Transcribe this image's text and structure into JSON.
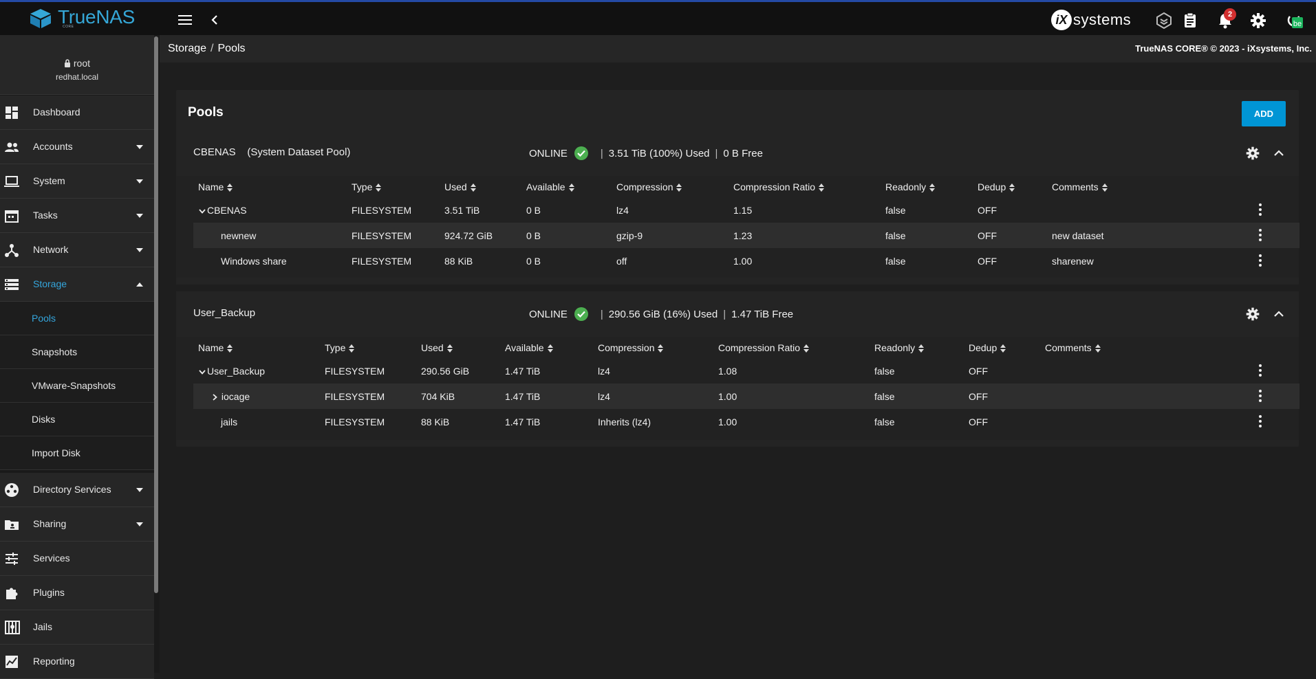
{
  "app": {
    "brand": "TrueNAS",
    "brand_sub": "CORE",
    "vendor_mark": "iX",
    "vendor": "systems",
    "notification_count": "2",
    "accent": "#0095d5",
    "online_color": "#4caf50"
  },
  "user": {
    "name": "root",
    "host": "redhat.local"
  },
  "sidebar": {
    "items": [
      {
        "label": "Dashboard",
        "icon": "dashboard-icon"
      },
      {
        "label": "Accounts",
        "icon": "people-icon"
      },
      {
        "label": "System",
        "icon": "laptop-icon"
      },
      {
        "label": "Tasks",
        "icon": "calendar-icon"
      },
      {
        "label": "Network",
        "icon": "network-icon"
      },
      {
        "label": "Storage",
        "icon": "storage-icon"
      },
      {
        "label": "Directory Services",
        "icon": "directory-icon"
      },
      {
        "label": "Sharing",
        "icon": "sharing-icon"
      },
      {
        "label": "Services",
        "icon": "tune-icon"
      },
      {
        "label": "Plugins",
        "icon": "extension-icon"
      },
      {
        "label": "Jails",
        "icon": "jail-icon"
      },
      {
        "label": "Reporting",
        "icon": "chart-icon"
      }
    ],
    "storage_sub": [
      "Pools",
      "Snapshots",
      "VMware-Snapshots",
      "Disks",
      "Import Disk"
    ]
  },
  "breadcrumb": {
    "parent": "Storage",
    "sep": "/",
    "current": "Pools"
  },
  "copyright": "TrueNAS CORE® © 2023 - iXsystems, Inc.",
  "page": {
    "title": "Pools",
    "add_label": "ADD"
  },
  "columns": [
    "Name",
    "Type",
    "Used",
    "Available",
    "Compression",
    "Compression Ratio",
    "Readonly",
    "Dedup",
    "Comments"
  ],
  "pools": [
    {
      "name": "CBENAS",
      "tag": "(System Dataset Pool)",
      "status": "ONLINE",
      "used": "3.51 TiB (100%) Used",
      "free": "0 B Free",
      "rows": [
        [
          "CBENAS",
          "FILESYSTEM",
          "3.51 TiB",
          "0 B",
          "lz4",
          "1.15",
          "false",
          "OFF",
          ""
        ],
        [
          "newnew",
          "FILESYSTEM",
          "924.72 GiB",
          "0 B",
          "gzip-9",
          "1.23",
          "false",
          "OFF",
          "new dataset"
        ],
        [
          "Windows share",
          "FILESYSTEM",
          "88 KiB",
          "0 B",
          "off",
          "1.00",
          "false",
          "OFF",
          "sharenew"
        ]
      ]
    },
    {
      "name": "User_Backup",
      "tag": "",
      "status": "ONLINE",
      "used": "290.56 GiB (16%) Used",
      "free": "1.47 TiB Free",
      "rows": [
        [
          "User_Backup",
          "FILESYSTEM",
          "290.56 GiB",
          "1.47 TiB",
          "lz4",
          "1.08",
          "false",
          "OFF",
          ""
        ],
        [
          "iocage",
          "FILESYSTEM",
          "704 KiB",
          "1.47 TiB",
          "lz4",
          "1.00",
          "false",
          "OFF",
          ""
        ],
        [
          "jails",
          "FILESYSTEM",
          "88 KiB",
          "1.47 TiB",
          "Inherits (lz4)",
          "1.00",
          "false",
          "OFF",
          ""
        ]
      ]
    }
  ]
}
